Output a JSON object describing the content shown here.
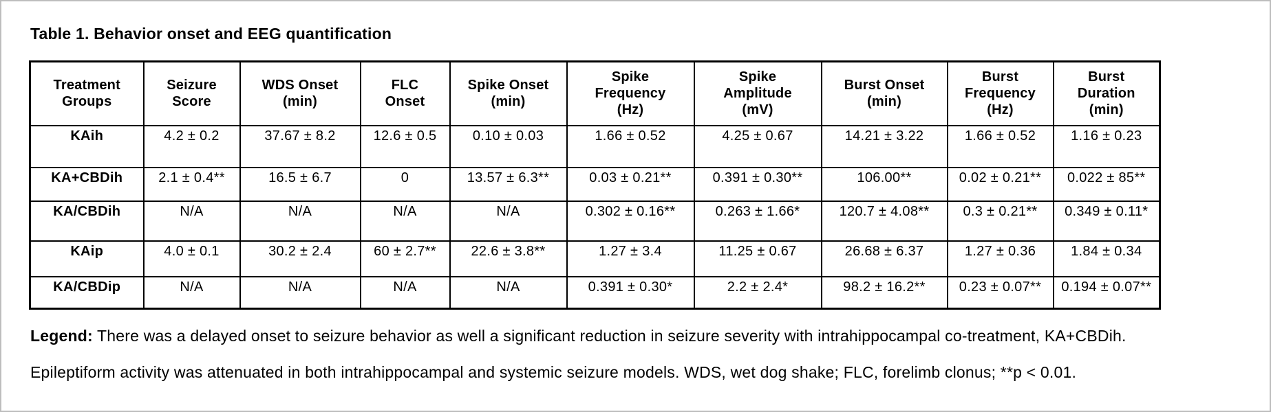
{
  "page": {
    "title": "Table 1. Behavior onset and EEG quantification"
  },
  "table": {
    "headers": [
      "Treatment\nGroups",
      "Seizure\nScore",
      "WDS Onset\n(min)",
      "FLC\nOnset",
      "Spike Onset\n(min)",
      "Spike\nFrequency\n(Hz)",
      "Spike\nAmplitude\n(mV)",
      "Burst Onset\n(min)",
      "Burst\nFrequency\n(Hz)",
      "Burst\nDuration\n(min)"
    ],
    "rows": [
      {
        "group": "KAih",
        "values": [
          "4.2 ± 0.2",
          "37.67 ± 8.2",
          "12.6 ± 0.5",
          "0.10 ± 0.03",
          "1.66 ± 0.52",
          "4.25 ± 0.67",
          "14.21 ± 3.22",
          "1.66 ± 0.52",
          "1.16 ± 0.23"
        ]
      },
      {
        "group": "KA+CBDih",
        "values": [
          "2.1 ± 0.4**",
          "16.5 ± 6.7",
          "0",
          "13.57 ± 6.3**",
          "0.03 ± 0.21**",
          "0.391 ± 0.30**",
          "106.00**",
          "0.02 ± 0.21**",
          "0.022 ± 85**"
        ]
      },
      {
        "group": "KA/CBDih",
        "values": [
          "N/A",
          "N/A",
          "N/A",
          "N/A",
          "0.302 ± 0.16**",
          "0.263 ± 1.66*",
          "120.7 ± 4.08**",
          "0.3 ± 0.21**",
          "0.349 ± 0.11*"
        ]
      },
      {
        "group": "KAip",
        "values": [
          "4.0 ± 0.1",
          "30.2 ± 2.4",
          "60 ± 2.7**",
          "22.6 ± 3.8**",
          "1.27 ± 3.4",
          "11.25 ± 0.67",
          "26.68 ± 6.37",
          "1.27 ± 0.36",
          "1.84 ± 0.34"
        ]
      },
      {
        "group": "KA/CBDip",
        "values": [
          "N/A",
          "N/A",
          "N/A",
          "N/A",
          "0.391 ± 0.30*",
          "2.2  ± 2.4*",
          "98.2 ± 16.2**",
          "0.23 ± 0.07**",
          "0.194 ± 0.07**"
        ]
      }
    ]
  },
  "legend": {
    "label": "Legend:",
    "line1": " There was a delayed onset to seizure behavior as well a significant reduction in seizure severity with intrahippocampal co-treatment, KA+CBDih.",
    "line2": "Epileptiform activity was attenuated in both intrahippocampal and systemic seizure models.  WDS, wet dog shake; FLC, forelimb clonus; **p < 0.01."
  },
  "colors": {
    "text": "#000000",
    "table_border": "#000000",
    "background": "#ffffff",
    "frame_border": "#bdbdbd"
  },
  "chart_data": {
    "type": "table",
    "title": "Table 1. Behavior onset and EEG quantification",
    "columns": [
      "Treatment Groups",
      "Seizure Score",
      "WDS Onset (min)",
      "FLC Onset",
      "Spike Onset (min)",
      "Spike Frequency (Hz)",
      "Spike Amplitude (mV)",
      "Burst Onset (min)",
      "Burst Frequency (Hz)",
      "Burst Duration (min)"
    ],
    "rows": [
      [
        "KAih",
        "4.2 ± 0.2",
        "37.67 ± 8.2",
        "12.6 ± 0.5",
        "0.10 ± 0.03",
        "1.66 ± 0.52",
        "4.25 ± 0.67",
        "14.21 ± 3.22",
        "1.66 ± 0.52",
        "1.16 ± 0.23"
      ],
      [
        "KA+CBDih",
        "2.1 ± 0.4**",
        "16.5 ± 6.7",
        "0",
        "13.57 ± 6.3**",
        "0.03 ± 0.21**",
        "0.391 ± 0.30**",
        "106.00**",
        "0.02 ± 0.21**",
        "0.022 ± 85**"
      ],
      [
        "KA/CBDih",
        "N/A",
        "N/A",
        "N/A",
        "N/A",
        "0.302 ± 0.16**",
        "0.263 ± 1.66*",
        "120.7 ± 4.08**",
        "0.3 ± 0.21**",
        "0.349 ± 0.11*"
      ],
      [
        "KAip",
        "4.0 ± 0.1",
        "30.2 ± 2.4",
        "60 ± 2.7**",
        "22.6 ± 3.8**",
        "1.27 ± 3.4",
        "11.25 ± 0.67",
        "26.68 ± 6.37",
        "1.27 ± 0.36",
        "1.84 ± 0.34"
      ],
      [
        "KA/CBDip",
        "N/A",
        "N/A",
        "N/A",
        "N/A",
        "0.391 ± 0.30*",
        "2.2 ± 2.4*",
        "98.2 ± 16.2**",
        "0.23 ± 0.07**",
        "0.194 ± 0.07**"
      ]
    ]
  }
}
